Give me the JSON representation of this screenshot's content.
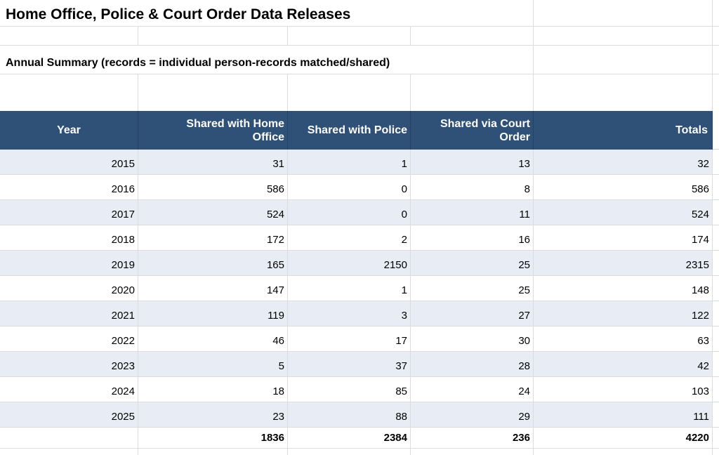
{
  "sheet": {
    "title": "Home Office, Police & Court Order Data Releases",
    "subtitle": "Annual Summary (records = individual person-records matched/shared)"
  },
  "table": {
    "columns": [
      "Year",
      "Shared with Home Office",
      "Shared with Police",
      "Shared via Court Order",
      "Totals"
    ],
    "rows": [
      {
        "year": "2015",
        "home_office": "31",
        "police": "1",
        "court_order": "13",
        "total": "32"
      },
      {
        "year": "2016",
        "home_office": "586",
        "police": "0",
        "court_order": "8",
        "total": "586"
      },
      {
        "year": "2017",
        "home_office": "524",
        "police": "0",
        "court_order": "11",
        "total": "524"
      },
      {
        "year": "2018",
        "home_office": "172",
        "police": "2",
        "court_order": "16",
        "total": "174"
      },
      {
        "year": "2019",
        "home_office": "165",
        "police": "2150",
        "court_order": "25",
        "total": "2315"
      },
      {
        "year": "2020",
        "home_office": "147",
        "police": "1",
        "court_order": "25",
        "total": "148"
      },
      {
        "year": "2021",
        "home_office": "119",
        "police": "3",
        "court_order": "27",
        "total": "122"
      },
      {
        "year": "2022",
        "home_office": "46",
        "police": "17",
        "court_order": "30",
        "total": "63"
      },
      {
        "year": "2023",
        "home_office": "5",
        "police": "37",
        "court_order": "28",
        "total": "42"
      },
      {
        "year": "2024",
        "home_office": "18",
        "police": "85",
        "court_order": "24",
        "total": "103"
      },
      {
        "year": "2025",
        "home_office": "23",
        "police": "88",
        "court_order": "29",
        "total": "111"
      }
    ],
    "totals": {
      "year": "",
      "home_office": "1836",
      "police": "2384",
      "court_order": "236",
      "total": "4220"
    }
  },
  "colors": {
    "header_bg": "#2F5077",
    "band_bg": "#E8EDF5",
    "header_text": "#FFFFFF",
    "gridline": "#DADCE0"
  }
}
